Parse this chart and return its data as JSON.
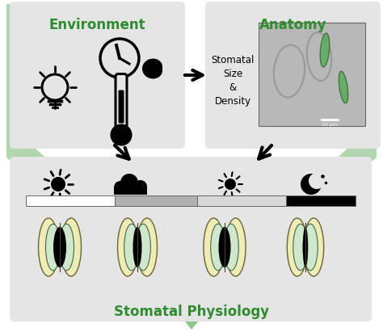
{
  "title_env": "Environment",
  "title_anat": "Anatomy",
  "title_phys": "Stomatal Physiology",
  "green_dark": "#2e8b2e",
  "green_light": "#c5e0c5",
  "green_med": "#8dc88d",
  "green_arrow": "#b0d8b0",
  "box_bg": "#e5e5e5",
  "white": "#ffffff",
  "black": "#111111",
  "stoma_outer": "#f0ecb8",
  "stoma_inner": "#cfe8cb",
  "stoma_pore": "#111111",
  "mic_bg": "#b8b8b8",
  "figsize": [
    4.74,
    4.11
  ],
  "dpi": 100
}
